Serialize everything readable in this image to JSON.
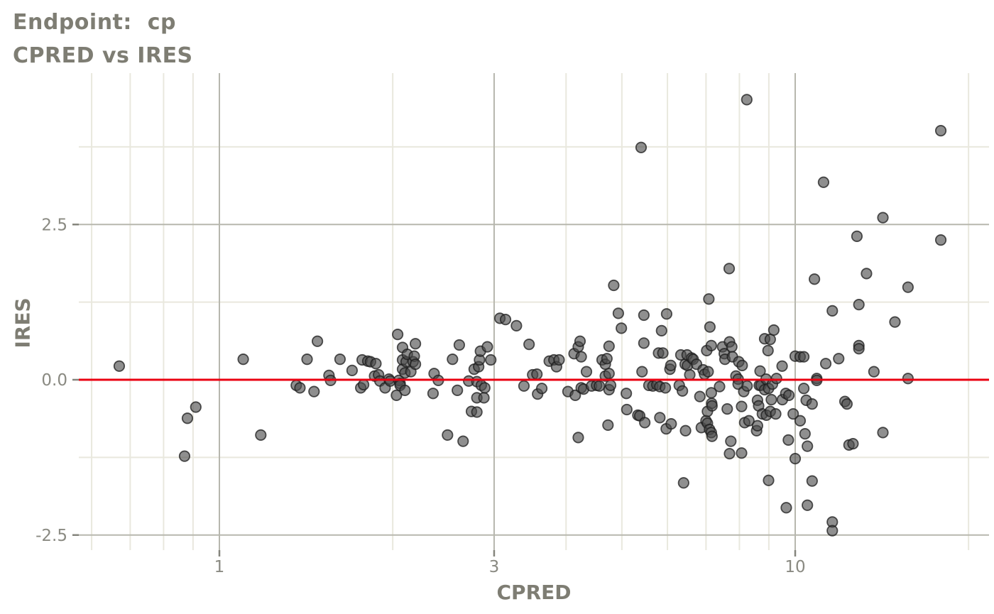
{
  "title": {
    "line1": "Endpoint:  cp",
    "line2": "CPRED vs IRES"
  },
  "axes": {
    "x_label": "CPRED",
    "y_label": "IRES",
    "x_tick_labels": [
      "1",
      "3",
      "10"
    ],
    "y_tick_labels": [
      "-2.5",
      "0.0",
      "2.5"
    ]
  },
  "colors": {
    "background": "#ffffff",
    "title": "#7e7d73",
    "tick_label": "#8a8a82",
    "tick_mark": "#85857d",
    "grid_major": "#b7b7ae",
    "grid_minor": "#e9e8de",
    "ref_line": "#ea0211",
    "point_fill": "#4a4a4a",
    "point_stroke": "#1c1c1c"
  },
  "chart_data": {
    "type": "scatter",
    "title": "Endpoint: cp — CPRED vs IRES",
    "xlabel": "CPRED",
    "ylabel": "IRES",
    "xscale": "log10",
    "xlim": [
      0.57,
      21.7
    ],
    "ylim": [
      -2.74,
      4.94
    ],
    "grid": true,
    "x_major_ticks": [
      1,
      3,
      10
    ],
    "x_minor_gridlines": [
      0.6,
      0.7,
      0.8,
      0.9,
      2,
      4,
      5,
      6,
      7,
      8,
      9,
      20
    ],
    "y_major_ticks": [
      -2.5,
      0,
      2.5
    ],
    "y_minor_gridlines": [
      -1.25,
      1.25,
      3.75
    ],
    "ref_line_y": 0,
    "points": [
      [
        0.67,
        0.22
      ],
      [
        0.87,
        -1.23
      ],
      [
        0.88,
        -0.62
      ],
      [
        0.91,
        -0.44
      ],
      [
        1.1,
        0.33
      ],
      [
        1.18,
        -0.89
      ],
      [
        1.36,
        -0.09
      ],
      [
        1.38,
        -0.13
      ],
      [
        1.42,
        0.33
      ],
      [
        1.46,
        -0.19
      ],
      [
        1.48,
        0.62
      ],
      [
        1.55,
        0.07
      ],
      [
        1.56,
        -0.01
      ],
      [
        1.62,
        0.33
      ],
      [
        1.7,
        0.15
      ],
      [
        1.76,
        -0.13
      ],
      [
        1.77,
        0.32
      ],
      [
        1.78,
        -0.08
      ],
      [
        1.81,
        0.3
      ],
      [
        1.83,
        0.29
      ],
      [
        1.86,
        0.06
      ],
      [
        1.87,
        0.26
      ],
      [
        1.89,
        0.08
      ],
      [
        1.9,
        -0.02
      ],
      [
        1.94,
        -0.13
      ],
      [
        1.97,
        0.01
      ],
      [
        1.98,
        -0.02
      ],
      [
        2.03,
        -0.25
      ],
      [
        2.04,
        0.73
      ],
      [
        2.05,
        -0.01
      ],
      [
        2.06,
        -0.06
      ],
      [
        2.06,
        -0.09
      ],
      [
        2.08,
        0.52
      ],
      [
        2.08,
        0.32
      ],
      [
        2.08,
        0.17
      ],
      [
        2.1,
        0.11
      ],
      [
        2.1,
        -0.17
      ],
      [
        2.11,
        0.29
      ],
      [
        2.12,
        0.41
      ],
      [
        2.15,
        0.13
      ],
      [
        2.17,
        0.29
      ],
      [
        2.18,
        0.38
      ],
      [
        2.19,
        0.58
      ],
      [
        2.19,
        0.25
      ],
      [
        2.35,
        -0.22
      ],
      [
        2.36,
        0.1
      ],
      [
        2.4,
        -0.01
      ],
      [
        2.49,
        -0.89
      ],
      [
        2.54,
        0.33
      ],
      [
        2.59,
        -0.17
      ],
      [
        2.61,
        0.56
      ],
      [
        2.65,
        -0.99
      ],
      [
        2.71,
        -0.02
      ],
      [
        2.74,
        -0.51
      ],
      [
        2.77,
        0.17
      ],
      [
        2.8,
        -0.03
      ],
      [
        2.8,
        -0.29
      ],
      [
        2.8,
        -0.52
      ],
      [
        2.82,
        0.21
      ],
      [
        2.83,
        0.32
      ],
      [
        2.84,
        0.46
      ],
      [
        2.85,
        -0.09
      ],
      [
        2.88,
        -0.29
      ],
      [
        2.89,
        -0.13
      ],
      [
        2.92,
        0.53
      ],
      [
        2.96,
        0.32
      ],
      [
        3.07,
        0.99
      ],
      [
        3.14,
        0.97
      ],
      [
        3.28,
        0.87
      ],
      [
        3.38,
        -0.1
      ],
      [
        3.45,
        0.57
      ],
      [
        3.5,
        0.08
      ],
      [
        3.56,
        0.09
      ],
      [
        3.57,
        -0.23
      ],
      [
        3.63,
        -0.14
      ],
      [
        3.74,
        0.3
      ],
      [
        3.81,
        0.32
      ],
      [
        3.85,
        0.21
      ],
      [
        3.89,
        0.32
      ],
      [
        4.03,
        -0.19
      ],
      [
        4.13,
        0.42
      ],
      [
        4.15,
        -0.25
      ],
      [
        4.2,
        0.53
      ],
      [
        4.2,
        -0.93
      ],
      [
        4.23,
        0.62
      ],
      [
        4.25,
        0.37
      ],
      [
        4.25,
        -0.13
      ],
      [
        4.29,
        -0.15
      ],
      [
        4.34,
        0.13
      ],
      [
        4.43,
        -0.1
      ],
      [
        4.52,
        -0.09
      ],
      [
        4.57,
        -0.1
      ],
      [
        4.62,
        0.32
      ],
      [
        4.68,
        0.25
      ],
      [
        4.68,
        0.06
      ],
      [
        4.71,
        0.34
      ],
      [
        4.73,
        -0.73
      ],
      [
        4.75,
        0.54
      ],
      [
        4.75,
        0.1
      ],
      [
        4.75,
        -0.16
      ],
      [
        4.78,
        -0.09
      ],
      [
        4.84,
        1.52
      ],
      [
        4.93,
        1.07
      ],
      [
        4.99,
        0.83
      ],
      [
        5.09,
        -0.22
      ],
      [
        5.1,
        -0.48
      ],
      [
        5.33,
        -0.57
      ],
      [
        5.37,
        -0.58
      ],
      [
        5.4,
        3.74
      ],
      [
        5.42,
        0.13
      ],
      [
        5.46,
        1.04
      ],
      [
        5.46,
        0.59
      ],
      [
        5.48,
        -0.69
      ],
      [
        5.57,
        -0.09
      ],
      [
        5.66,
        -0.1
      ],
      [
        5.75,
        -0.08
      ],
      [
        5.79,
        0.43
      ],
      [
        5.82,
        -0.11
      ],
      [
        5.82,
        -0.61
      ],
      [
        5.86,
        0.79
      ],
      [
        5.89,
        0.43
      ],
      [
        5.95,
        -0.13
      ],
      [
        5.97,
        -0.79
      ],
      [
        5.98,
        1.06
      ],
      [
        6.06,
        0.17
      ],
      [
        6.08,
        0.23
      ],
      [
        6.09,
        -0.71
      ],
      [
        6.29,
        -0.09
      ],
      [
        6.33,
        0.4
      ],
      [
        6.37,
        -0.18
      ],
      [
        6.4,
        -1.66
      ],
      [
        6.44,
        0.25
      ],
      [
        6.45,
        -0.82
      ],
      [
        6.49,
        0.4
      ],
      [
        6.5,
        0.23
      ],
      [
        6.56,
        0.08
      ],
      [
        6.61,
        0.35
      ],
      [
        6.65,
        0.33
      ],
      [
        6.74,
        0.25
      ],
      [
        6.83,
        -0.27
      ],
      [
        6.87,
        -0.77
      ],
      [
        6.92,
        0.16
      ],
      [
        6.96,
        0.09
      ],
      [
        7.0,
        -0.66
      ],
      [
        7.02,
        0.47
      ],
      [
        7.04,
        -0.7
      ],
      [
        7.04,
        -0.51
      ],
      [
        7.06,
        0.13
      ],
      [
        7.08,
        1.3
      ],
      [
        7.1,
        -0.8
      ],
      [
        7.11,
        0.85
      ],
      [
        7.15,
        0.55
      ],
      [
        7.15,
        -0.21
      ],
      [
        7.15,
        -0.85
      ],
      [
        7.16,
        -0.38
      ],
      [
        7.17,
        -0.42
      ],
      [
        7.17,
        -0.91
      ],
      [
        7.39,
        -0.11
      ],
      [
        7.48,
        0.53
      ],
      [
        7.53,
        0.42
      ],
      [
        7.55,
        0.33
      ],
      [
        7.62,
        -0.47
      ],
      [
        7.68,
        1.79
      ],
      [
        7.69,
        0.61
      ],
      [
        7.69,
        -1.19
      ],
      [
        7.73,
        -0.99
      ],
      [
        7.76,
        0.53
      ],
      [
        7.78,
        0.37
      ],
      [
        7.89,
        0.06
      ],
      [
        7.96,
        0.01
      ],
      [
        7.96,
        -0.07
      ],
      [
        7.98,
        0.29
      ],
      [
        8.07,
        -0.43
      ],
      [
        8.07,
        -1.18
      ],
      [
        8.09,
        0.23
      ],
      [
        8.14,
        -0.19
      ],
      [
        8.17,
        -0.69
      ],
      [
        8.24,
        4.51
      ],
      [
        8.25,
        -0.1
      ],
      [
        8.31,
        -0.66
      ],
      [
        8.57,
        -0.82
      ],
      [
        8.6,
        -0.74
      ],
      [
        8.6,
        -0.33
      ],
      [
        8.64,
        -0.42
      ],
      [
        8.66,
        -0.09
      ],
      [
        8.69,
        0.14
      ],
      [
        8.72,
        -0.09
      ],
      [
        8.77,
        -0.55
      ],
      [
        8.85,
        0.66
      ],
      [
        8.85,
        -0.16
      ],
      [
        8.9,
        0.01
      ],
      [
        8.91,
        -0.57
      ],
      [
        8.97,
        0.47
      ],
      [
        8.99,
        -0.14
      ],
      [
        8.99,
        -1.62
      ],
      [
        9.05,
        0.65
      ],
      [
        9.05,
        -0.51
      ],
      [
        9.09,
        -0.32
      ],
      [
        9.13,
        -0.07
      ],
      [
        9.18,
        0.8
      ],
      [
        9.25,
        -0.55
      ],
      [
        9.28,
        0.02
      ],
      [
        9.49,
        0.22
      ],
      [
        9.5,
        -0.32
      ],
      [
        9.63,
        -0.22
      ],
      [
        9.65,
        -2.06
      ],
      [
        9.73,
        -0.97
      ],
      [
        9.75,
        -0.25
      ],
      [
        9.92,
        -0.55
      ],
      [
        10.0,
        0.38
      ],
      [
        10.0,
        -1.27
      ],
      [
        10.2,
        0.37
      ],
      [
        10.2,
        -0.66
      ],
      [
        10.35,
        0.37
      ],
      [
        10.35,
        -0.14
      ],
      [
        10.4,
        -0.87
      ],
      [
        10.45,
        -0.33
      ],
      [
        10.5,
        -1.07
      ],
      [
        10.5,
        -2.02
      ],
      [
        10.7,
        -0.39
      ],
      [
        10.7,
        -1.63
      ],
      [
        10.8,
        1.62
      ],
      [
        10.9,
        0.02
      ],
      [
        10.9,
        -0.01
      ],
      [
        11.2,
        3.18
      ],
      [
        11.3,
        0.26
      ],
      [
        11.6,
        1.11
      ],
      [
        11.6,
        -2.29
      ],
      [
        11.6,
        -2.43
      ],
      [
        11.9,
        0.34
      ],
      [
        12.2,
        -0.35
      ],
      [
        12.3,
        -0.39
      ],
      [
        12.4,
        -1.05
      ],
      [
        12.6,
        -1.03
      ],
      [
        12.8,
        2.31
      ],
      [
        12.9,
        1.21
      ],
      [
        12.9,
        0.55
      ],
      [
        12.9,
        0.5
      ],
      [
        13.3,
        1.71
      ],
      [
        13.7,
        0.13
      ],
      [
        14.2,
        2.61
      ],
      [
        14.2,
        -0.85
      ],
      [
        14.9,
        0.93
      ],
      [
        15.7,
        1.49
      ],
      [
        15.7,
        0.02
      ],
      [
        17.9,
        4.01
      ],
      [
        17.9,
        2.25
      ]
    ]
  }
}
